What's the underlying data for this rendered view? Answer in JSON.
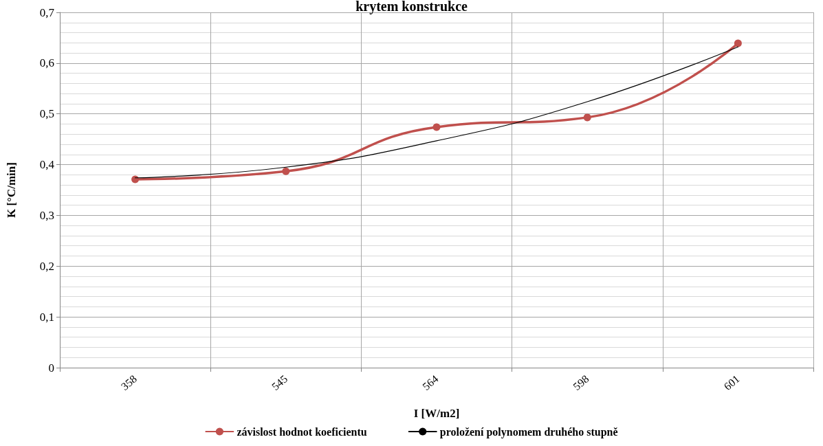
{
  "chart_data": {
    "type": "line",
    "title": "krytem konstrukce",
    "xlabel": "I [W/m2]",
    "ylabel": "K [°C/min]",
    "categories": [
      "358",
      "545",
      "564",
      "598",
      "601"
    ],
    "series": [
      {
        "name": "závislost hodnot koeficientu",
        "color": "#c0504d",
        "values": [
          0.371,
          0.387,
          0.474,
          0.493,
          0.639
        ],
        "marker": "circle"
      },
      {
        "name": "proložení polynomem druhého stupně",
        "color": "#000000",
        "values": [
          0.374,
          0.395,
          0.447,
          0.524,
          0.632
        ],
        "marker": "none"
      }
    ],
    "ylim": [
      0,
      0.7
    ],
    "yticks": [
      0,
      {
        "value": 0.1,
        "label": "0,1"
      },
      {
        "value": 0.2,
        "label": "0,2"
      },
      {
        "value": 0.3,
        "label": "0,3"
      },
      {
        "value": 0.4,
        "label": "0,4"
      },
      {
        "value": 0.5,
        "label": "0,5"
      },
      {
        "value": 0.6,
        "label": "0,6"
      },
      {
        "value": 0.7,
        "label": "0,7"
      }
    ],
    "grid": true,
    "legend": "bottom",
    "line_style": "solid"
  }
}
